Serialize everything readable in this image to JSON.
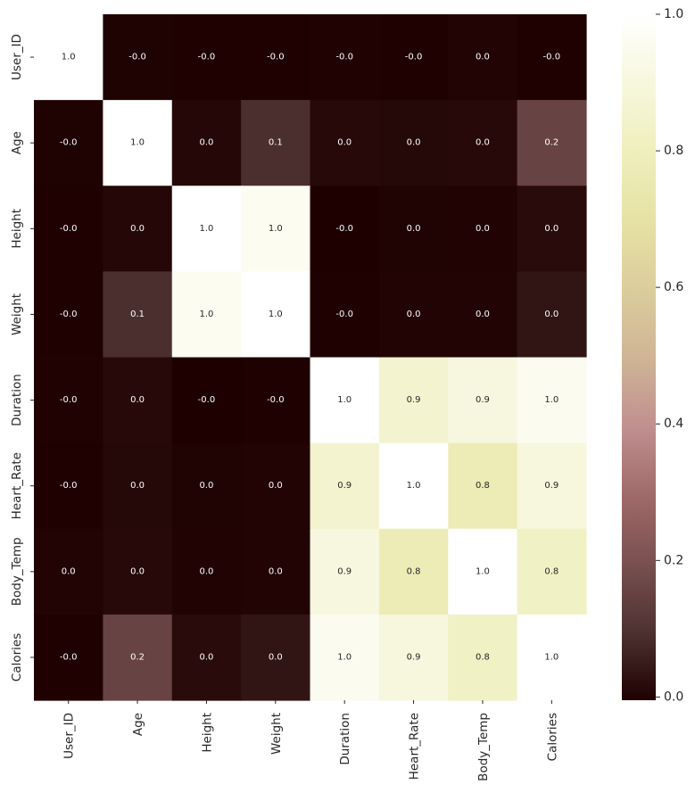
{
  "chart_data": {
    "type": "heatmap",
    "title": "",
    "xlabel": "",
    "ylabel": "",
    "variables": [
      "User_ID",
      "Age",
      "Height",
      "Weight",
      "Duration",
      "Heart_Rate",
      "Body_Temp",
      "Calories"
    ],
    "values": [
      [
        1.0,
        -0.0016,
        -0.0031,
        -0.003,
        -0.0008,
        -0.002,
        0.0029,
        -0.0017
      ],
      [
        -0.0016,
        1.0,
        0.0095,
        0.0901,
        0.0131,
        0.0108,
        0.0132,
        0.154
      ],
      [
        -0.0031,
        0.0095,
        1.0,
        0.958,
        -0.0047,
        0.0005,
        0.0012,
        0.0175
      ],
      [
        -0.003,
        0.0901,
        0.958,
        1.0,
        -0.0019,
        0.0043,
        0.004,
        0.0351
      ],
      [
        -0.0008,
        0.0131,
        -0.0047,
        -0.0019,
        1.0,
        0.853,
        0.903,
        0.955
      ],
      [
        -0.002,
        0.0108,
        0.0005,
        0.0043,
        0.853,
        1.0,
        0.772,
        0.898
      ],
      [
        0.0029,
        0.0132,
        0.0012,
        0.004,
        0.903,
        0.772,
        1.0,
        0.825
      ],
      [
        -0.0017,
        0.154,
        0.0175,
        0.0351,
        0.955,
        0.898,
        0.825,
        1.0
      ]
    ],
    "annotations": [
      [
        "1.0",
        "-0.0",
        "-0.0",
        "-0.0",
        "-0.0",
        "-0.0",
        "0.0",
        "-0.0"
      ],
      [
        "-0.0",
        "1.0",
        "0.0",
        "0.1",
        "0.0",
        "0.0",
        "0.0",
        "0.2"
      ],
      [
        "-0.0",
        "0.0",
        "1.0",
        "1.0",
        "-0.0",
        "0.0",
        "0.0",
        "0.0"
      ],
      [
        "-0.0",
        "0.1",
        "1.0",
        "1.0",
        "-0.0",
        "0.0",
        "0.0",
        "0.0"
      ],
      [
        "-0.0",
        "0.0",
        "-0.0",
        "-0.0",
        "1.0",
        "0.9",
        "0.9",
        "1.0"
      ],
      [
        "-0.0",
        "0.0",
        "0.0",
        "0.0",
        "0.9",
        "1.0",
        "0.8",
        "0.9"
      ],
      [
        "0.0",
        "0.0",
        "0.0",
        "0.0",
        "0.9",
        "0.8",
        "1.0",
        "0.8"
      ],
      [
        "-0.0",
        "0.2",
        "0.0",
        "0.0",
        "1.0",
        "0.9",
        "0.8",
        "1.0"
      ]
    ],
    "colorbar": {
      "vmin": -0.0047,
      "vmax": 1.0,
      "ticks": [
        0.0,
        0.2,
        0.4,
        0.6,
        0.8,
        1.0
      ],
      "tick_labels": [
        "0.0",
        "0.2",
        "0.4",
        "0.6",
        "0.8",
        "1.0"
      ]
    },
    "colormap": "pink",
    "colormap_stops": [
      "#1e0000",
      "#4e3232",
      "#7a5050",
      "#a06a6a",
      "#c09090",
      "#cfb595",
      "#dccd9d",
      "#e6e2a4",
      "#efefbd",
      "#f7f7de",
      "#ffffff"
    ]
  }
}
